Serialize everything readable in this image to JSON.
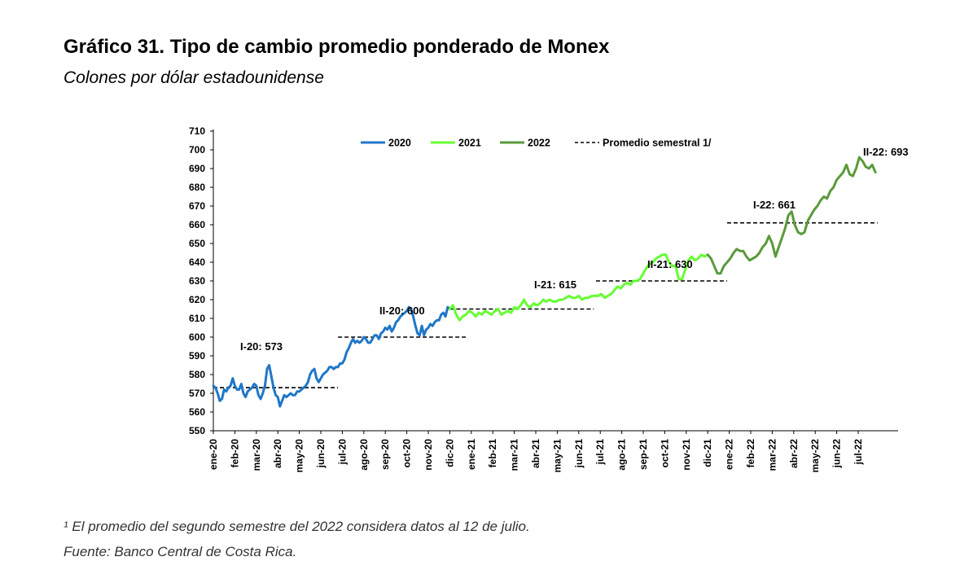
{
  "header": {
    "title": "Gráfico 31. Tipo de cambio promedio ponderado de Monex",
    "subtitle": "Colones por dólar estadounidense"
  },
  "notes": {
    "footnote": "¹ El promedio del segundo semestre del 2022 considera datos al 12 de julio.",
    "source": "Fuente: Banco Central de Costa Rica."
  },
  "chart_data": {
    "type": "line",
    "ylim": [
      550,
      710
    ],
    "y_ticks": [
      550,
      560,
      570,
      580,
      590,
      600,
      610,
      620,
      630,
      640,
      650,
      660,
      670,
      680,
      690,
      700,
      710
    ],
    "x_ticks": [
      "ene-20",
      "feb-20",
      "mar-20",
      "abr-20",
      "may-20",
      "jun-20",
      "jul-20",
      "ago-20",
      "sep-20",
      "oct-20",
      "nov-20",
      "dic-20",
      "ene-21",
      "feb-21",
      "mar-21",
      "abr-21",
      "may-21",
      "jun-21",
      "jul-21",
      "ago-21",
      "sep-21",
      "oct-21",
      "nov-21",
      "dic-21",
      "ene-22",
      "feb-22",
      "mar-22",
      "abr-22",
      "may-22",
      "jun-22",
      "jul-22"
    ],
    "grid": false,
    "legend_position": "top",
    "series": [
      {
        "name": "2020",
        "color": "#1f77c8",
        "points": [
          [
            0,
            574
          ],
          [
            0.1,
            573
          ],
          [
            0.2,
            570
          ],
          [
            0.3,
            566
          ],
          [
            0.4,
            567
          ],
          [
            0.5,
            572
          ],
          [
            0.6,
            571
          ],
          [
            0.7,
            573
          ],
          [
            0.8,
            574
          ],
          [
            0.9,
            578
          ],
          [
            1.0,
            574
          ],
          [
            1.1,
            572
          ],
          [
            1.2,
            572
          ],
          [
            1.3,
            575
          ],
          [
            1.4,
            570
          ],
          [
            1.5,
            568
          ],
          [
            1.6,
            571
          ],
          [
            1.7,
            572
          ],
          [
            1.8,
            573
          ],
          [
            1.9,
            575
          ],
          [
            2.0,
            574
          ],
          [
            2.1,
            569
          ],
          [
            2.2,
            567
          ],
          [
            2.3,
            570
          ],
          [
            2.4,
            574
          ],
          [
            2.5,
            583
          ],
          [
            2.6,
            585
          ],
          [
            2.7,
            579
          ],
          [
            2.8,
            573
          ],
          [
            2.9,
            569
          ],
          [
            3.0,
            568
          ],
          [
            3.1,
            563
          ],
          [
            3.2,
            566
          ],
          [
            3.3,
            569
          ],
          [
            3.4,
            568
          ],
          [
            3.5,
            569
          ],
          [
            3.6,
            570
          ],
          [
            3.7,
            569
          ],
          [
            3.8,
            569
          ],
          [
            3.9,
            571
          ],
          [
            4.0,
            571
          ],
          [
            4.1,
            572
          ],
          [
            4.2,
            573
          ],
          [
            4.3,
            574
          ],
          [
            4.4,
            576
          ],
          [
            4.5,
            580
          ],
          [
            4.6,
            582
          ],
          [
            4.7,
            583
          ],
          [
            4.8,
            578
          ],
          [
            4.9,
            576
          ],
          [
            5.0,
            578
          ],
          [
            5.1,
            580
          ],
          [
            5.2,
            581
          ],
          [
            5.3,
            582
          ],
          [
            5.4,
            584
          ],
          [
            5.5,
            584
          ],
          [
            5.6,
            583
          ],
          [
            5.7,
            584
          ],
          [
            5.8,
            584
          ],
          [
            5.9,
            586
          ],
          [
            6.0,
            586
          ],
          [
            6.1,
            588
          ],
          [
            6.2,
            592
          ],
          [
            6.3,
            594
          ],
          [
            6.4,
            597
          ],
          [
            6.5,
            599
          ],
          [
            6.6,
            597
          ],
          [
            6.7,
            598
          ],
          [
            6.8,
            597
          ],
          [
            6.9,
            598
          ],
          [
            7.0,
            600
          ],
          [
            7.1,
            599
          ],
          [
            7.2,
            597
          ],
          [
            7.3,
            597
          ],
          [
            7.4,
            599
          ],
          [
            7.5,
            601
          ],
          [
            7.6,
            601
          ],
          [
            7.7,
            599
          ],
          [
            7.8,
            602
          ],
          [
            7.9,
            603
          ],
          [
            8.0,
            605
          ],
          [
            8.1,
            604
          ],
          [
            8.2,
            606
          ],
          [
            8.3,
            603
          ],
          [
            8.4,
            605
          ],
          [
            8.5,
            608
          ],
          [
            8.6,
            609
          ],
          [
            8.7,
            611
          ],
          [
            8.8,
            612
          ],
          [
            8.9,
            613
          ],
          [
            9.0,
            614
          ],
          [
            9.1,
            616
          ],
          [
            9.2,
            615
          ],
          [
            9.3,
            611
          ],
          [
            9.4,
            606
          ],
          [
            9.5,
            602
          ],
          [
            9.6,
            601
          ],
          [
            9.7,
            606
          ],
          [
            9.8,
            601
          ],
          [
            9.9,
            604
          ],
          [
            10.0,
            605
          ],
          [
            10.1,
            607
          ],
          [
            10.2,
            606
          ],
          [
            10.3,
            608
          ],
          [
            10.4,
            609
          ],
          [
            10.5,
            609
          ],
          [
            10.6,
            612
          ],
          [
            10.7,
            613
          ],
          [
            10.8,
            611
          ],
          [
            10.9,
            616
          ],
          [
            11.0,
            615
          ]
        ]
      },
      {
        "name": "2021",
        "color": "#66ff33",
        "points": [
          [
            11.0,
            615
          ],
          [
            11.15,
            617
          ],
          [
            11.3,
            612
          ],
          [
            11.45,
            609
          ],
          [
            11.6,
            611
          ],
          [
            11.75,
            612
          ],
          [
            11.9,
            614
          ],
          [
            12.05,
            613
          ],
          [
            12.2,
            611
          ],
          [
            12.35,
            613
          ],
          [
            12.5,
            612
          ],
          [
            12.65,
            614
          ],
          [
            12.8,
            613
          ],
          [
            12.95,
            612
          ],
          [
            13.1,
            614
          ],
          [
            13.25,
            615
          ],
          [
            13.4,
            612
          ],
          [
            13.55,
            613
          ],
          [
            13.7,
            614
          ],
          [
            13.85,
            613
          ],
          [
            14.0,
            616
          ],
          [
            14.15,
            615
          ],
          [
            14.3,
            617
          ],
          [
            14.45,
            620
          ],
          [
            14.6,
            617
          ],
          [
            14.75,
            616
          ],
          [
            14.9,
            618
          ],
          [
            15.05,
            617
          ],
          [
            15.2,
            618
          ],
          [
            15.35,
            620
          ],
          [
            15.5,
            619
          ],
          [
            15.65,
            620
          ],
          [
            15.8,
            619
          ],
          [
            15.95,
            619
          ],
          [
            16.1,
            620
          ],
          [
            16.25,
            620
          ],
          [
            16.4,
            621
          ],
          [
            16.55,
            622
          ],
          [
            16.7,
            621
          ],
          [
            16.85,
            621
          ],
          [
            17.0,
            622
          ],
          [
            17.15,
            620
          ],
          [
            17.3,
            621
          ],
          [
            17.45,
            621
          ],
          [
            17.6,
            622
          ],
          [
            17.75,
            622
          ],
          [
            17.9,
            622
          ],
          [
            18.05,
            623
          ],
          [
            18.2,
            621
          ],
          [
            18.35,
            622
          ],
          [
            18.5,
            623
          ],
          [
            18.65,
            625
          ],
          [
            18.8,
            627
          ],
          [
            18.95,
            626
          ],
          [
            19.1,
            628
          ],
          [
            19.25,
            629
          ],
          [
            19.4,
            628
          ],
          [
            19.55,
            630
          ],
          [
            19.7,
            630
          ],
          [
            19.85,
            631
          ],
          [
            20.0,
            634
          ],
          [
            20.15,
            637
          ],
          [
            20.3,
            639
          ],
          [
            20.45,
            640
          ],
          [
            20.6,
            642
          ],
          [
            20.75,
            643
          ],
          [
            20.9,
            644
          ],
          [
            21.05,
            644
          ],
          [
            21.2,
            640
          ],
          [
            21.35,
            638
          ],
          [
            21.5,
            638
          ],
          [
            21.65,
            631
          ],
          [
            21.8,
            631
          ],
          [
            21.95,
            636
          ],
          [
            22.1,
            641
          ],
          [
            22.25,
            643
          ],
          [
            22.4,
            641
          ],
          [
            22.55,
            642
          ],
          [
            22.7,
            644
          ],
          [
            22.85,
            643
          ],
          [
            23.0,
            644
          ]
        ]
      },
      {
        "name": "2022",
        "color": "#5a9a3a",
        "points": [
          [
            23.0,
            644
          ],
          [
            23.15,
            642
          ],
          [
            23.3,
            638
          ],
          [
            23.45,
            634
          ],
          [
            23.6,
            634
          ],
          [
            23.75,
            638
          ],
          [
            23.9,
            640
          ],
          [
            24.05,
            642
          ],
          [
            24.2,
            645
          ],
          [
            24.35,
            647
          ],
          [
            24.5,
            646
          ],
          [
            24.65,
            646
          ],
          [
            24.8,
            643
          ],
          [
            24.95,
            641
          ],
          [
            25.1,
            642
          ],
          [
            25.25,
            643
          ],
          [
            25.4,
            645
          ],
          [
            25.55,
            648
          ],
          [
            25.7,
            650
          ],
          [
            25.85,
            654
          ],
          [
            26.0,
            650
          ],
          [
            26.15,
            643
          ],
          [
            26.3,
            648
          ],
          [
            26.45,
            653
          ],
          [
            26.6,
            658
          ],
          [
            26.75,
            665
          ],
          [
            26.9,
            667
          ],
          [
            27.05,
            660
          ],
          [
            27.2,
            656
          ],
          [
            27.35,
            655
          ],
          [
            27.5,
            656
          ],
          [
            27.65,
            662
          ],
          [
            27.8,
            665
          ],
          [
            27.95,
            668
          ],
          [
            28.1,
            670
          ],
          [
            28.25,
            673
          ],
          [
            28.4,
            675
          ],
          [
            28.55,
            674
          ],
          [
            28.7,
            678
          ],
          [
            28.85,
            680
          ],
          [
            29.0,
            684
          ],
          [
            29.15,
            686
          ],
          [
            29.3,
            688
          ],
          [
            29.45,
            692
          ],
          [
            29.6,
            687
          ],
          [
            29.75,
            686
          ],
          [
            29.9,
            690
          ],
          [
            30.05,
            696
          ],
          [
            30.2,
            694
          ],
          [
            30.35,
            691
          ],
          [
            30.5,
            690
          ],
          [
            30.65,
            692
          ],
          [
            30.8,
            688
          ]
        ]
      },
      {
        "name": "Promedio semestral 1/",
        "style": "dashed",
        "color": "#000000",
        "segments": [
          {
            "label": "I-20: 573",
            "value": 573,
            "x_start": 0,
            "x_end": 5.8
          },
          {
            "label": "II-20: 600",
            "value": 600,
            "x_start": 5.8,
            "x_end": 11.8
          },
          {
            "label": "I-21: 615",
            "value": 615,
            "x_start": 11.0,
            "x_end": 17.7
          },
          {
            "label": "II-21: 630",
            "value": 630,
            "x_start": 17.8,
            "x_end": 23.9
          },
          {
            "label": "I-22: 661",
            "value": 661,
            "x_start": 23.9,
            "x_end": 30.9
          },
          {
            "label": "II-22: 693",
            "value": 693,
            "x_start": null,
            "x_end": null
          }
        ]
      }
    ]
  }
}
